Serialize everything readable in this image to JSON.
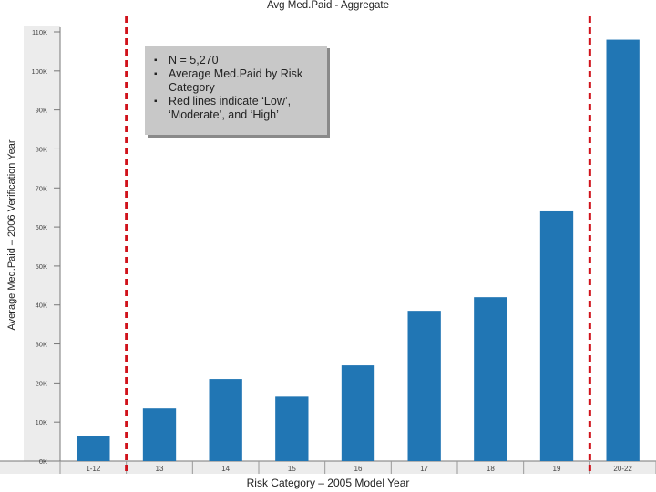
{
  "chart_data": {
    "type": "bar",
    "title": "Avg Med.Paid - Aggregate",
    "xlabel": "Risk Category – 2005 Model Year",
    "ylabel": "Average Med.Paid – 2006 Verification Year",
    "categories": [
      "1-12",
      "13",
      "14",
      "15",
      "16",
      "17",
      "18",
      "19",
      "20-22"
    ],
    "values": [
      6500,
      13500,
      21000,
      16500,
      24500,
      38500,
      42000,
      64000,
      108000
    ],
    "ylim": [
      0,
      110000
    ],
    "yticks": [
      {
        "value": 0,
        "label": "0K"
      },
      {
        "value": 10000,
        "label": "10K"
      },
      {
        "value": 20000,
        "label": "20K"
      },
      {
        "value": 30000,
        "label": "30K"
      },
      {
        "value": 40000,
        "label": "40K"
      },
      {
        "value": 50000,
        "label": "50K"
      },
      {
        "value": 60000,
        "label": "60K"
      },
      {
        "value": 70000,
        "label": "70K"
      },
      {
        "value": 80000,
        "label": "80K"
      },
      {
        "value": 90000,
        "label": "90K"
      },
      {
        "value": 100000,
        "label": "100K"
      },
      {
        "value": 110000,
        "label": "110K"
      }
    ],
    "bar_color": "#2176b4",
    "threshold_color": "#d0121b",
    "threshold_lines_between": [
      [
        0,
        1
      ],
      [
        7,
        8
      ]
    ],
    "grid": false
  },
  "annotation": {
    "bullets": [
      "N = 5,270",
      "Average Med.Paid by Risk Category",
      "Red lines indicate ‘Low’, ‘Moderate’, and ‘High’"
    ]
  }
}
